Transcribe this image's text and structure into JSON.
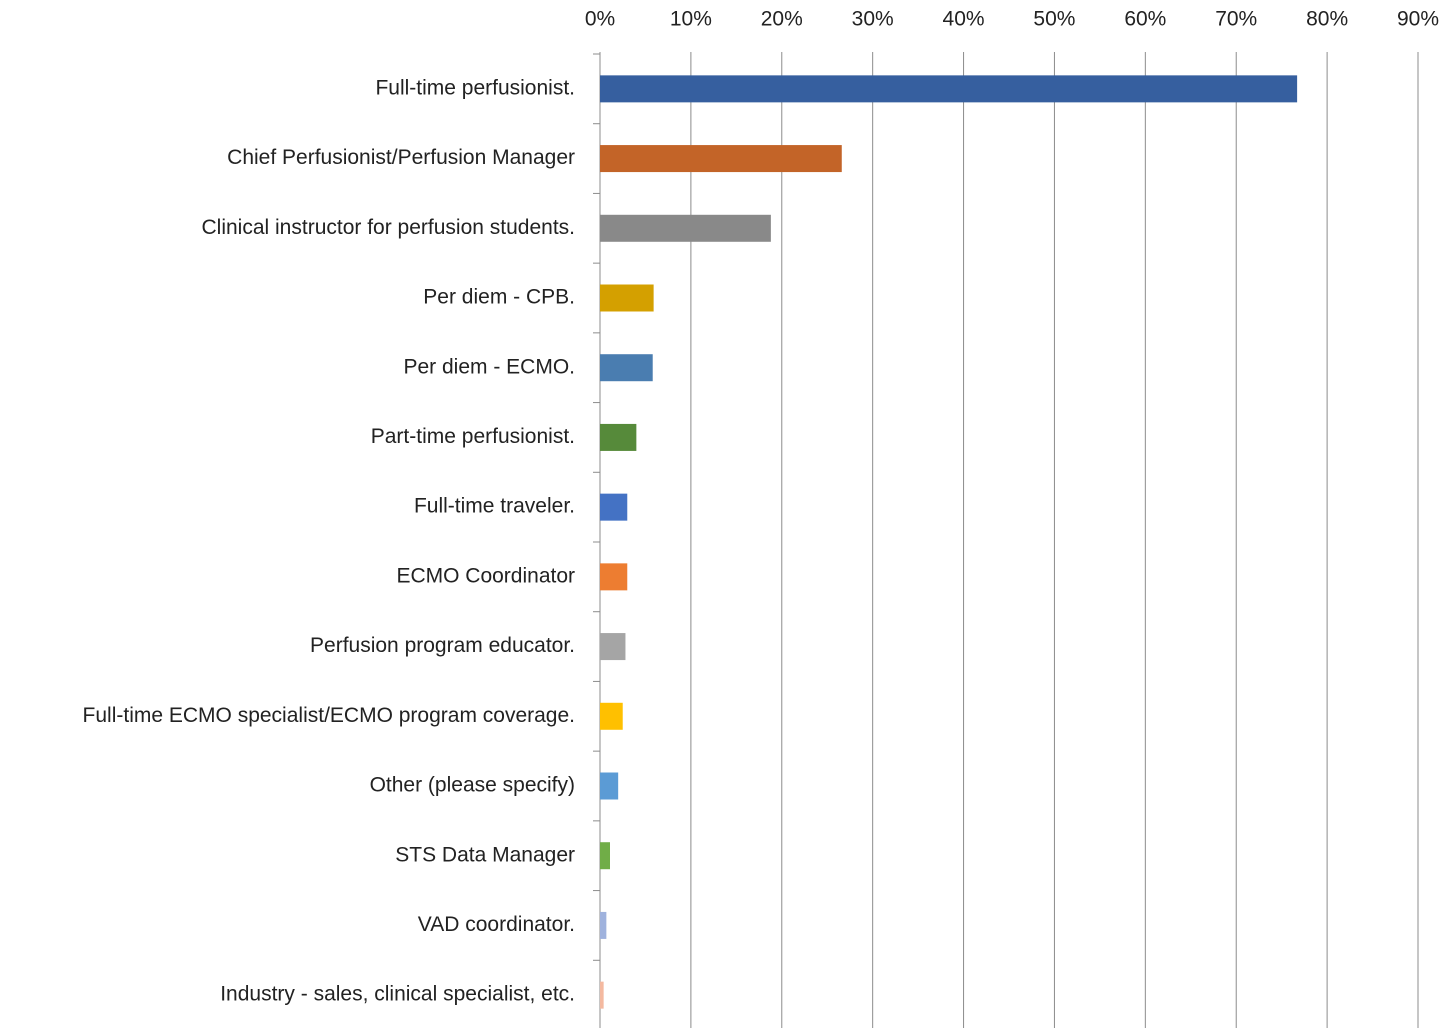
{
  "chart_data": {
    "type": "bar",
    "orientation": "horizontal",
    "categories": [
      "Full-time perfusionist.",
      "Chief Perfusionist/Perfusion Manager",
      "Clinical instructor for perfusion students.",
      "Per diem - CPB.",
      "Per diem - ECMO.",
      "Part-time perfusionist.",
      "Full-time traveler.",
      "ECMO Coordinator",
      "Perfusion program educator.",
      "Full-time ECMO specialist/ECMO program coverage.",
      "Other (please specify)",
      "STS Data Manager",
      "VAD coordinator.",
      "Industry - sales, clinical specialist, etc."
    ],
    "values": [
      76.7,
      26.6,
      18.8,
      5.9,
      5.8,
      4.0,
      3.0,
      3.0,
      2.8,
      2.5,
      2.0,
      1.1,
      0.7,
      0.4
    ],
    "colors": [
      "#365f9f",
      "#c36428",
      "#898989",
      "#d4a000",
      "#4a7db0",
      "#568a3a",
      "#4472c4",
      "#ed7d31",
      "#a5a5a5",
      "#ffc000",
      "#5b9bd5",
      "#70ad47",
      "#9fb2dd",
      "#f4b9a0"
    ],
    "xlim": [
      0,
      90
    ],
    "xticks": [
      {
        "value": 0,
        "label": "0%"
      },
      {
        "value": 10,
        "label": "10%"
      },
      {
        "value": 20,
        "label": "20%"
      },
      {
        "value": 30,
        "label": "30%"
      },
      {
        "value": 40,
        "label": "40%"
      },
      {
        "value": 50,
        "label": "50%"
      },
      {
        "value": 60,
        "label": "60%"
      },
      {
        "value": 70,
        "label": "70%"
      },
      {
        "value": 80,
        "label": "80%"
      },
      {
        "value": 90,
        "label": "90%"
      }
    ],
    "grid": true
  }
}
